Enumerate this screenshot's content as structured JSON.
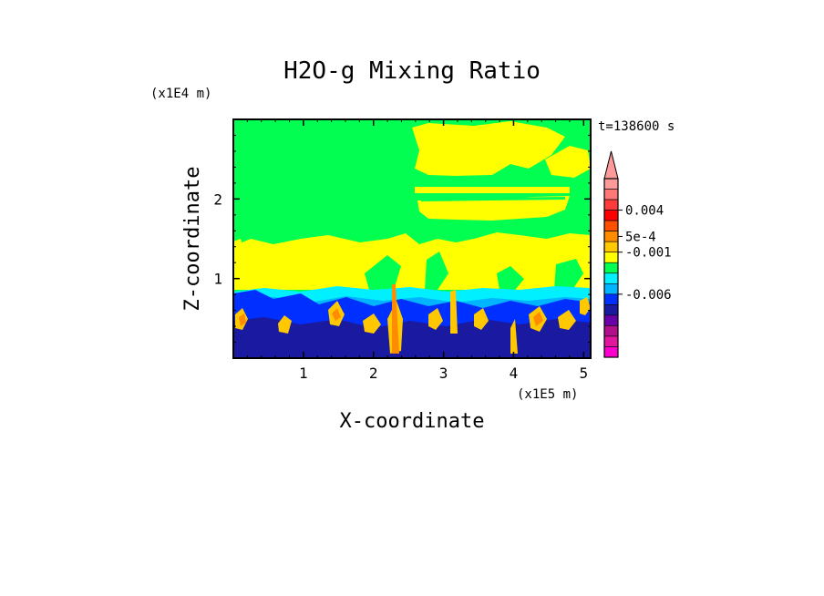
{
  "chart_data": {
    "type": "heatmap",
    "title": "H2O-g Mixing Ratio",
    "xlabel": "X-coordinate",
    "ylabel": "Z-coordinate",
    "x_scale_label": "(x1E5 m)",
    "y_scale_label": "(x1E4 m)",
    "time_label": "t=138600 s",
    "xlim": [
      0,
      5.1
    ],
    "ylim": [
      0,
      3.0
    ],
    "x_ticks": [
      1,
      2,
      3,
      4,
      5
    ],
    "y_ticks": [
      1,
      2
    ],
    "grid": false,
    "colorbar": {
      "placement": "right",
      "extend": "max",
      "colors": [
        "#ff00cc",
        "#e0189c",
        "#b0108c",
        "#6a00a8",
        "#1a1aa0",
        "#0030ff",
        "#00b4ff",
        "#00f0ff",
        "#00ff50",
        "#ffff00",
        "#ffc800",
        "#ff8c00",
        "#ff5000",
        "#ff0000",
        "#ff3c3c",
        "#ff7878",
        "#ff9a9a"
      ],
      "tick_labels": [
        "0.004",
        "5e-4",
        "-0.001",
        "-0.006"
      ],
      "tick_values": [
        0.004,
        0.0005,
        -0.001,
        -0.006
      ]
    },
    "regions": [
      {
        "name": "upper",
        "z_range": [
          1.3,
          3.0
        ],
        "dominant": "green band (~0) with yellow patches above x=2.6"
      },
      {
        "name": "middle",
        "z_range": [
          0.8,
          1.3
        ],
        "dominant": "yellow band (~5e-4) with green breaks"
      },
      {
        "name": "lower",
        "z_range": [
          0.0,
          0.8
        ],
        "dominant": "blue/dark-blue (negative) with orange plumes (~0.004)"
      }
    ]
  }
}
